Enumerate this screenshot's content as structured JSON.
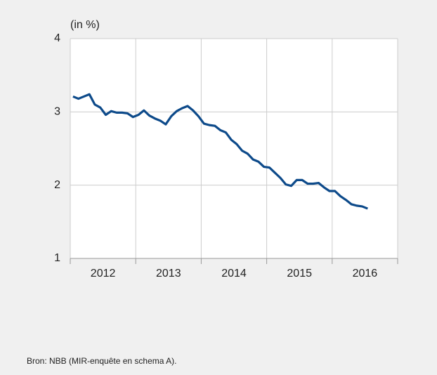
{
  "chart_data": {
    "type": "line",
    "y_unit_label": "(in %)",
    "source": "Bron: NBB (MIR-enquête en schema A).",
    "x": [
      2012.042,
      2012.125,
      2012.208,
      2012.292,
      2012.375,
      2012.458,
      2012.542,
      2012.625,
      2012.708,
      2012.792,
      2012.875,
      2012.958,
      2013.042,
      2013.125,
      2013.208,
      2013.292,
      2013.375,
      2013.458,
      2013.542,
      2013.625,
      2013.708,
      2013.792,
      2013.875,
      2013.958,
      2014.042,
      2014.125,
      2014.208,
      2014.292,
      2014.375,
      2014.458,
      2014.542,
      2014.625,
      2014.708,
      2014.792,
      2014.875,
      2014.958,
      2015.042,
      2015.125,
      2015.208,
      2015.292,
      2015.375,
      2015.458,
      2015.542,
      2015.625,
      2015.708,
      2015.792,
      2015.875,
      2015.958,
      2016.042,
      2016.125,
      2016.208,
      2016.292,
      2016.375,
      2016.458,
      2016.542
    ],
    "series": [
      {
        "color": "#0d4a8a",
        "values": [
          3.21,
          3.18,
          3.21,
          3.24,
          3.1,
          3.06,
          2.96,
          3.01,
          2.99,
          2.99,
          2.98,
          2.93,
          2.96,
          3.02,
          2.95,
          2.91,
          2.88,
          2.83,
          2.94,
          3.01,
          3.05,
          3.08,
          3.02,
          2.94,
          2.84,
          2.82,
          2.81,
          2.75,
          2.72,
          2.62,
          2.56,
          2.47,
          2.43,
          2.35,
          2.32,
          2.25,
          2.24,
          2.17,
          2.1,
          2.01,
          1.99,
          2.07,
          2.07,
          2.02,
          2.02,
          2.03,
          1.97,
          1.92,
          1.92,
          1.85,
          1.8,
          1.74,
          1.72,
          1.71,
          1.68
        ]
      }
    ],
    "xlim": [
      2012,
      2017
    ],
    "xticks": [
      2012,
      2013,
      2014,
      2015,
      2016,
      2017
    ],
    "x_labels": [
      2012,
      2013,
      2014,
      2015,
      2016
    ],
    "ylim": [
      1,
      4
    ],
    "yticks": [
      1,
      2,
      3,
      4
    ],
    "grid": true
  }
}
